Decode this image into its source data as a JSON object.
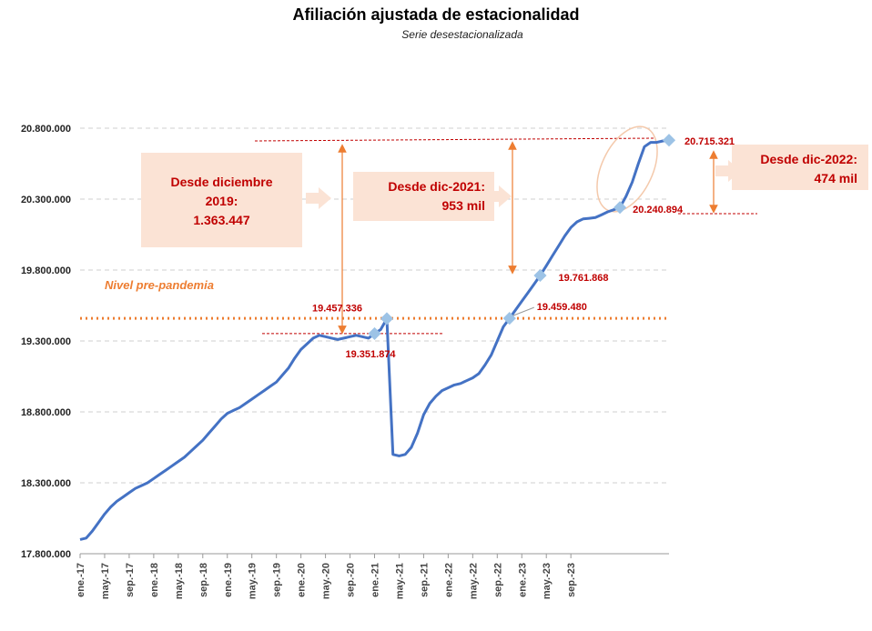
{
  "chart_data": {
    "type": "line",
    "title": "Afiliación ajustada de estacionalidad",
    "subtitle": "Serie desestacionalizada",
    "ylim": [
      17800000,
      20800000
    ],
    "yticks": [
      "17.800.000",
      "18.300.000",
      "18.800.000",
      "19.300.000",
      "19.800.000",
      "20.300.000",
      "20.800.000"
    ],
    "ytick_values": [
      17800000,
      18300000,
      18800000,
      19300000,
      19800000,
      20300000,
      20800000
    ],
    "xticks": [
      "ene.-17",
      "may.-17",
      "sep.-17",
      "ene.-18",
      "may.-18",
      "sep.-18",
      "ene.-19",
      "may.-19",
      "sep.-19",
      "ene.-20",
      "may.-20",
      "sep.-20",
      "ene.-21",
      "may.-21",
      "sep.-21",
      "ene.-22",
      "may.-22",
      "sep.-22",
      "ene.-23",
      "may.-23",
      "sep.-23"
    ],
    "series": [
      {
        "color": "#4472c4",
        "values": [
          17900000,
          17910000,
          17960000,
          18020000,
          18080000,
          18130000,
          18170000,
          18200000,
          18230000,
          18260000,
          18280000,
          18300000,
          18330000,
          18360000,
          18390000,
          18420000,
          18450000,
          18480000,
          18520000,
          18560000,
          18600000,
          18650000,
          18700000,
          18750000,
          18790000,
          18810000,
          18830000,
          18860000,
          18890000,
          18920000,
          18950000,
          18980000,
          19010000,
          19060000,
          19110000,
          19180000,
          19240000,
          19280000,
          19320000,
          19340000,
          19330000,
          19320000,
          19310000,
          19320000,
          19330000,
          19340000,
          19330000,
          19320000,
          19351874,
          19380000,
          19457336,
          18500000,
          18490000,
          18500000,
          18550000,
          18650000,
          18780000,
          18860000,
          18910000,
          18950000,
          18970000,
          18990000,
          19000000,
          19020000,
          19040000,
          19070000,
          19130000,
          19200000,
          19300000,
          19400000,
          19459480,
          19520000,
          19580000,
          19640000,
          19700000,
          19761868,
          19830000,
          19900000,
          19970000,
          20040000,
          20100000,
          20140000,
          20160000,
          20165000,
          20170000,
          20190000,
          20210000,
          20225000,
          20240894,
          20320000,
          20420000,
          20550000,
          20670000,
          20700000,
          20700000,
          20710000,
          20715321
        ]
      }
    ],
    "reference_line": {
      "label": "Nivel pre-pandemia",
      "value": 19459480,
      "color": "#ed7d31"
    },
    "markers": [
      {
        "index": 48,
        "label": "19.351.874"
      },
      {
        "index": 50,
        "label": "19.457.336"
      },
      {
        "index": 70,
        "label": "19.459.480"
      },
      {
        "index": 75,
        "label": "19.761.868"
      },
      {
        "index": 88,
        "label": "20.240.894"
      },
      {
        "index": 96,
        "label": "20.715.321"
      }
    ],
    "callouts": [
      {
        "lines": [
          "Desde diciembre",
          "2019:",
          "1.363.447"
        ]
      },
      {
        "lines": [
          "Desde dic-2021:",
          "953 mil"
        ]
      },
      {
        "lines": [
          "Desde dic-2022:",
          "474 mil"
        ]
      }
    ],
    "grid": true,
    "legend": "none"
  }
}
